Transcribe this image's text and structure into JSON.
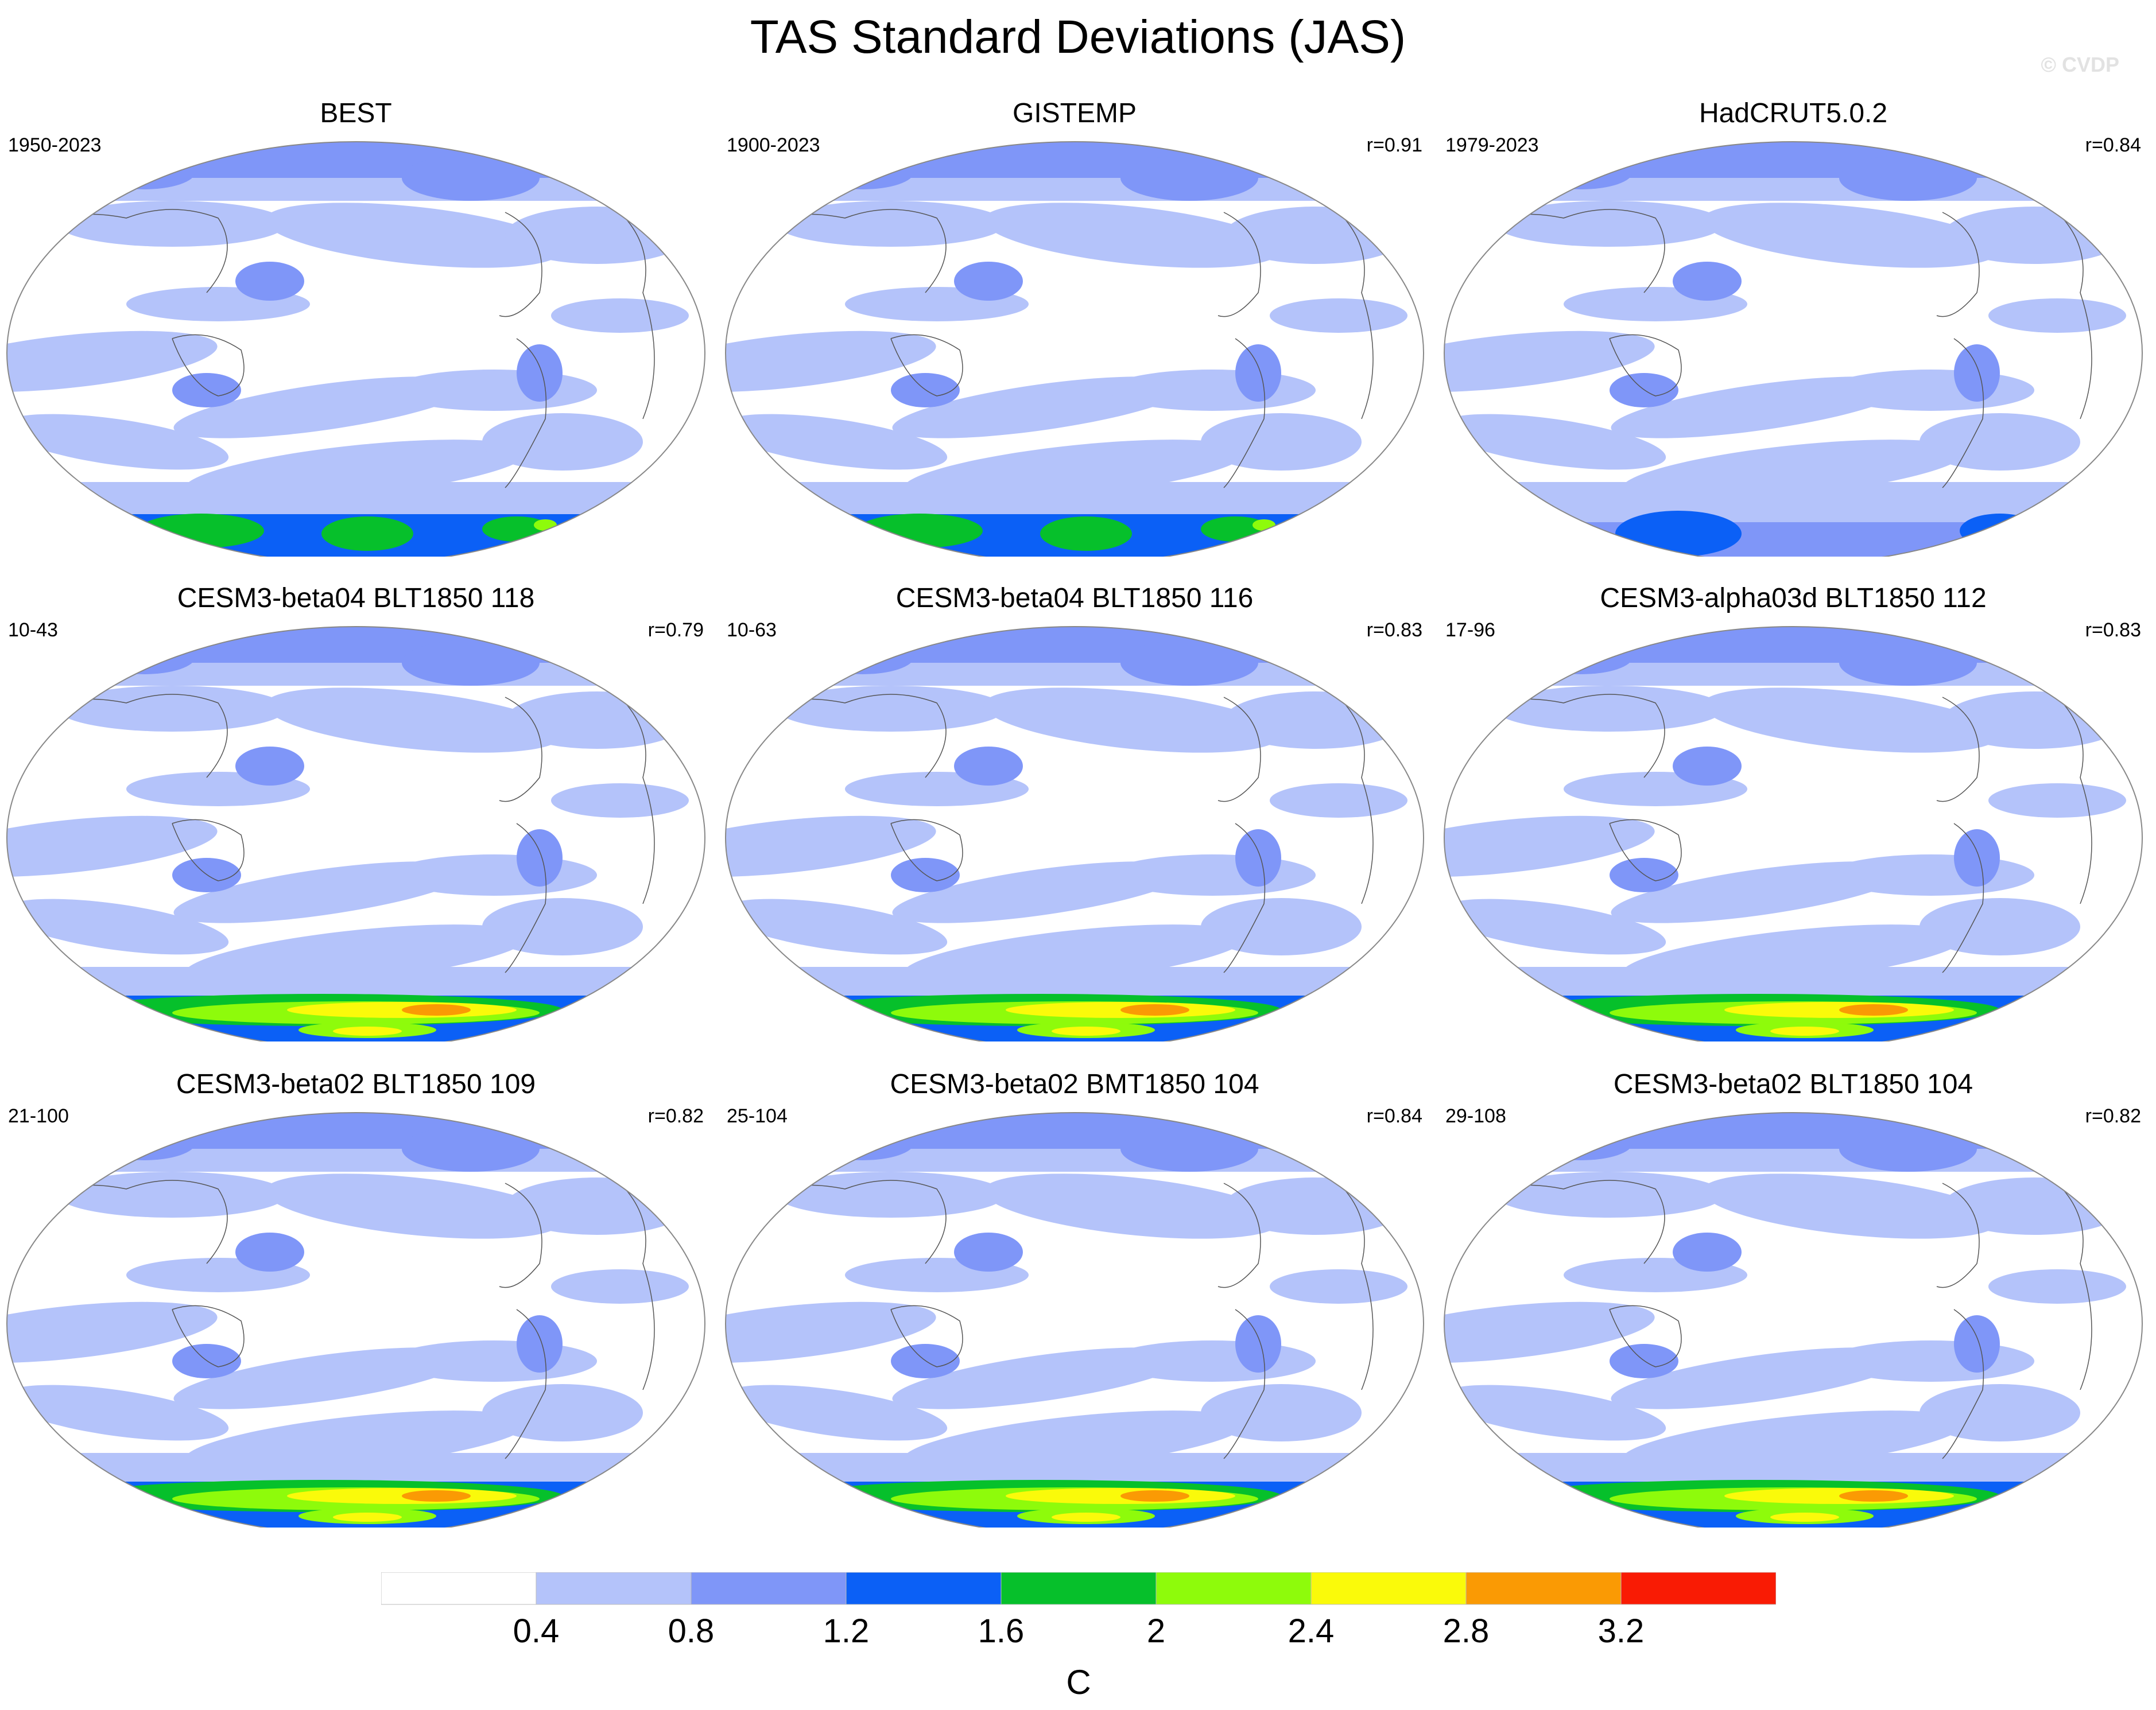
{
  "chart_data": {
    "type": "heatmap",
    "title": "TAS Standard Deviations (JAS)",
    "watermark": "© CVDP",
    "units": "C",
    "levels": [
      0.4,
      0.8,
      1.2,
      1.6,
      2,
      2.4,
      2.8,
      3.2
    ],
    "colorbar_labels": [
      "0.4",
      "0.8",
      "1.2",
      "1.6",
      "2",
      "2.4",
      "2.8",
      "3.2"
    ],
    "colors": [
      "#ffffff",
      "#b4c3fa",
      "#7f96f8",
      "#0b60f6",
      "#06c02b",
      "#8efb0b",
      "#fafa0a",
      "#fa9a04",
      "#f91b04"
    ],
    "panels": [
      {
        "title": "BEST",
        "years": "1950-2023",
        "r": "",
        "ant": 2
      },
      {
        "title": "GISTEMP",
        "years": "1900-2023",
        "r": "r=0.91",
        "ant": 2
      },
      {
        "title": "HadCRUT5.0.2",
        "years": "1979-2023",
        "r": "r=0.84",
        "ant": 1
      },
      {
        "title": "CESM3-beta04 BLT1850 118",
        "years": "10-43",
        "r": "r=0.79",
        "ant": 3
      },
      {
        "title": "CESM3-beta04 BLT1850 116",
        "years": "10-63",
        "r": "r=0.83",
        "ant": 3
      },
      {
        "title": "CESM3-alpha03d BLT1850 112",
        "years": "17-96",
        "r": "r=0.83",
        "ant": 3
      },
      {
        "title": "CESM3-beta02 BLT1850 109",
        "years": "21-100",
        "r": "r=0.82",
        "ant": 3
      },
      {
        "title": "CESM3-beta02 BMT1850 104",
        "years": "25-104",
        "r": "r=0.84",
        "ant": 3
      },
      {
        "title": "CESM3-beta02 BLT1850 104",
        "years": "29-108",
        "r": "r=0.82",
        "ant": 3
      }
    ]
  }
}
